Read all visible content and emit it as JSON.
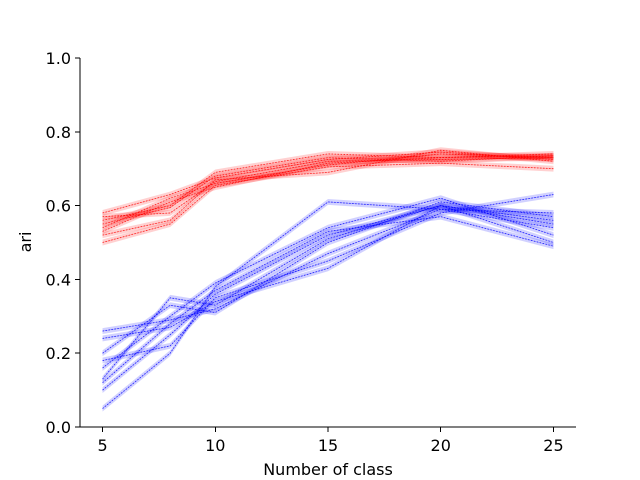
{
  "chart_data": {
    "type": "line",
    "title": "",
    "xlabel": "Number of class",
    "ylabel": "ari",
    "xlim": [
      4,
      26
    ],
    "ylim": [
      0,
      1
    ],
    "xticks": [
      "5",
      "10",
      "15",
      "20",
      "25"
    ],
    "yticks": [
      "0.0",
      "0.2",
      "0.4",
      "0.6",
      "0.8",
      "1.0"
    ],
    "grid": false,
    "legend": "none",
    "x": [
      5,
      8,
      10,
      15,
      20,
      25
    ],
    "band_halfwidth": 0.008,
    "groups": [
      {
        "color": "#ff0000",
        "series": [
          {
            "values": [
              0.57,
              0.58,
              0.665,
              0.72,
              0.725,
              0.73
            ]
          },
          {
            "values": [
              0.55,
              0.595,
              0.68,
              0.73,
              0.72,
              0.735
            ]
          },
          {
            "values": [
              0.54,
              0.62,
              0.66,
              0.71,
              0.74,
              0.73
            ]
          },
          {
            "values": [
              0.52,
              0.56,
              0.67,
              0.69,
              0.75,
              0.72
            ]
          },
          {
            "values": [
              0.56,
              0.6,
              0.69,
              0.74,
              0.73,
              0.74
            ]
          },
          {
            "values": [
              0.5,
              0.55,
              0.655,
              0.705,
              0.715,
              0.7
            ]
          },
          {
            "values": [
              0.58,
              0.63,
              0.675,
              0.725,
              0.745,
              0.725
            ]
          },
          {
            "values": [
              0.53,
              0.61,
              0.65,
              0.715,
              0.73,
              0.735
            ]
          }
        ]
      },
      {
        "color": "#0000ff",
        "series": [
          {
            "values": [
              0.05,
              0.2,
              0.38,
              0.61,
              0.59,
              0.54
            ]
          },
          {
            "values": [
              0.1,
              0.25,
              0.36,
              0.52,
              0.6,
              0.56
            ]
          },
          {
            "values": [
              0.13,
              0.35,
              0.33,
              0.51,
              0.6,
              0.5
            ]
          },
          {
            "values": [
              0.16,
              0.3,
              0.39,
              0.54,
              0.62,
              0.52
            ]
          },
          {
            "values": [
              0.18,
              0.22,
              0.35,
              0.45,
              0.58,
              0.63
            ]
          },
          {
            "values": [
              0.2,
              0.33,
              0.31,
              0.5,
              0.61,
              0.57
            ]
          },
          {
            "values": [
              0.24,
              0.27,
              0.34,
              0.43,
              0.6,
              0.55
            ]
          },
          {
            "values": [
              0.26,
              0.29,
              0.32,
              0.47,
              0.59,
              0.58
            ]
          },
          {
            "values": [
              0.12,
              0.28,
              0.37,
              0.53,
              0.57,
              0.49
            ]
          }
        ]
      }
    ]
  }
}
